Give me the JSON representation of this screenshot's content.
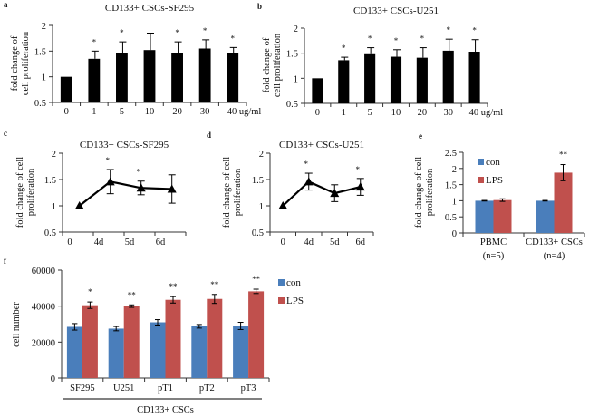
{
  "colors": {
    "black_bar": "#000000",
    "con": "#4A7EBB",
    "lps": "#C0504D",
    "axis": "#333333"
  },
  "chart_data": [
    {
      "id": "a",
      "panel_letter": "a",
      "type": "bar",
      "title": "CD133+ CSCs-SF295",
      "ylabel": [
        "fold change of",
        "cell proliferation"
      ],
      "xlabel": "",
      "categories": [
        "0",
        "1",
        "5",
        "10",
        "20",
        "30",
        "40 ug/ml"
      ],
      "values": [
        1.0,
        1.35,
        1.46,
        1.52,
        1.46,
        1.55,
        1.46
      ],
      "errors": [
        0,
        0.15,
        0.22,
        0.33,
        0.22,
        0.17,
        0.11
      ],
      "significance": [
        "",
        "*",
        "*",
        "",
        "*",
        "*",
        "*"
      ],
      "ylim": [
        0.5,
        2
      ],
      "yticks": [
        "0.5",
        "1",
        "1.5",
        "2"
      ],
      "ytick_values": [
        0.5,
        1,
        1.5,
        2
      ],
      "grid": false
    },
    {
      "id": "b",
      "panel_letter": "b",
      "type": "bar",
      "title": "CD133+ CSCs-U251",
      "ylabel": [
        "fold change of",
        "cell proliferation"
      ],
      "xlabel": "",
      "categories": [
        "0",
        "1",
        "5",
        "10",
        "20",
        "30",
        "40 ug/ml"
      ],
      "values": [
        1.0,
        1.36,
        1.48,
        1.43,
        1.41,
        1.55,
        1.53
      ],
      "errors": [
        0,
        0.06,
        0.13,
        0.14,
        0.2,
        0.23,
        0.24
      ],
      "significance": [
        "",
        "*",
        "*",
        "*",
        "*",
        "*",
        "*"
      ],
      "ylim": [
        0.5,
        2
      ],
      "yticks": [
        "0.5",
        "1",
        "1.5",
        "2"
      ],
      "ytick_values": [
        0.5,
        1,
        1.5,
        2
      ],
      "grid": false
    },
    {
      "id": "c",
      "panel_letter": "c",
      "type": "line",
      "title": "CD133+ CSCs-SF295",
      "ylabel": [
        "fold change of cell",
        "proliferation"
      ],
      "xlabel": "",
      "categories": [
        "0",
        "4d",
        "5d",
        "6d"
      ],
      "x": [
        0,
        1,
        2,
        3
      ],
      "values": [
        1.0,
        1.46,
        1.34,
        1.32
      ],
      "errors": [
        0,
        0.23,
        0.13,
        0.27
      ],
      "significance": [
        "",
        "*",
        "*",
        ""
      ],
      "ylim": [
        0.5,
        2
      ],
      "yticks": [
        "0.5",
        "1",
        "1.5",
        "2"
      ],
      "ytick_values": [
        0.5,
        1,
        1.5,
        2
      ],
      "marker": "triangle",
      "grid": false
    },
    {
      "id": "d",
      "panel_letter": "d",
      "type": "line",
      "title": "CD133+ CSCs-U251",
      "ylabel": [
        "fold change of cell",
        "proliferation"
      ],
      "xlabel": "",
      "categories": [
        "0",
        "4d",
        "5d",
        "6d"
      ],
      "x": [
        0,
        1,
        2,
        3
      ],
      "values": [
        1.0,
        1.46,
        1.24,
        1.36
      ],
      "errors": [
        0,
        0.16,
        0.16,
        0.16
      ],
      "significance": [
        "",
        "*",
        "",
        "*"
      ],
      "ylim": [
        0.5,
        2
      ],
      "yticks": [
        "0.5",
        "1",
        "1.5",
        "2"
      ],
      "ytick_values": [
        0.5,
        1,
        1.5,
        2
      ],
      "marker": "triangle",
      "grid": false
    },
    {
      "id": "e",
      "panel_letter": "e",
      "type": "bar",
      "title": "",
      "ylabel": [
        "fold change of cell",
        "proliferation"
      ],
      "xlabel": "",
      "categories": [
        [
          "PBMC",
          "(n=5)"
        ],
        [
          "CD133+ CSCs",
          "(n=4)"
        ]
      ],
      "series": [
        {
          "name": "con",
          "values": [
            1.0,
            1.0
          ],
          "errors": [
            0.01,
            0.01
          ]
        },
        {
          "name": "LPS",
          "values": [
            1.02,
            1.87
          ],
          "errors": [
            0.04,
            0.25
          ]
        }
      ],
      "significance": [
        "",
        "**"
      ],
      "ylim": [
        0,
        2.5
      ],
      "yticks": [
        "0",
        "0.5",
        "1",
        "1.5",
        "2",
        "2.5"
      ],
      "ytick_values": [
        0,
        0.5,
        1,
        1.5,
        2,
        2.5
      ],
      "legend": [
        "con",
        "LPS"
      ],
      "legend_position": "top-left",
      "grid": false
    },
    {
      "id": "f",
      "panel_letter": "f",
      "type": "bar",
      "title": "",
      "ylabel": [
        "cell number"
      ],
      "xlabel": "CD133+ CSCs",
      "categories": [
        "SF295",
        "U251",
        "pT1",
        "pT2",
        "pT3"
      ],
      "series": [
        {
          "name": "con",
          "values": [
            28500,
            27500,
            31000,
            28800,
            29000
          ],
          "errors": [
            1800,
            1200,
            1500,
            1000,
            2000
          ]
        },
        {
          "name": "LPS",
          "values": [
            40500,
            40000,
            43500,
            44000,
            48200
          ],
          "errors": [
            1800,
            700,
            1800,
            2500,
            1200
          ]
        }
      ],
      "significance": [
        "*",
        "**",
        "**",
        "**",
        "**"
      ],
      "ylim": [
        0,
        60000
      ],
      "yticks": [
        "0",
        "20000",
        "40000",
        "60000"
      ],
      "ytick_values": [
        0,
        20000,
        40000,
        60000
      ],
      "legend": [
        "con",
        "LPS"
      ],
      "legend_position": "right",
      "grid": false
    }
  ]
}
